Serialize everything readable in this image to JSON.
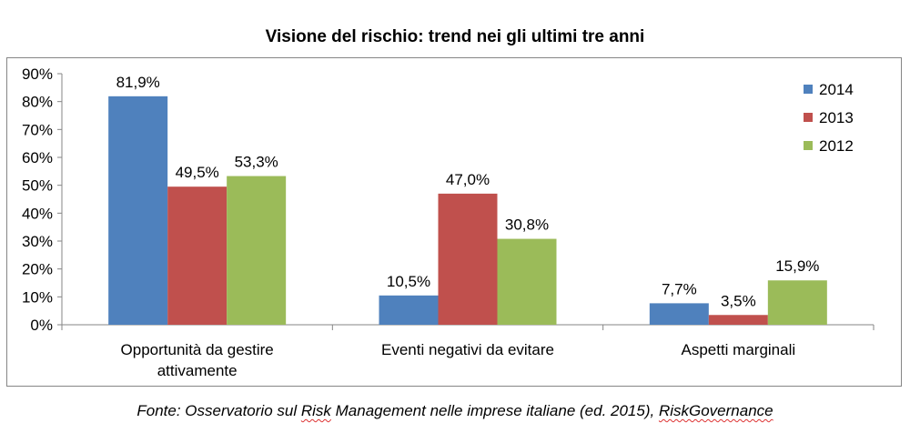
{
  "chart_data": {
    "type": "bar",
    "title": "Visione del rischio: trend nei gli ultimi tre anni",
    "categories": [
      [
        "Opportunità da gestire",
        "attivamente"
      ],
      [
        "Eventi negativi da evitare"
      ],
      [
        "Aspetti marginali"
      ]
    ],
    "series": [
      {
        "name": "2014",
        "color": "#4f81bd",
        "values": [
          81.9,
          10.5,
          7.7
        ],
        "labels": [
          "81,9%",
          "10,5%",
          "7,7%"
        ]
      },
      {
        "name": "2013",
        "color": "#c0504d",
        "values": [
          49.5,
          47.0,
          3.5
        ],
        "labels": [
          "49,5%",
          "47,0%",
          "3,5%"
        ]
      },
      {
        "name": "2012",
        "color": "#9bbb59",
        "values": [
          53.3,
          30.8,
          15.9
        ],
        "labels": [
          "53,3%",
          "30,8%",
          "15,9%"
        ]
      }
    ],
    "ylim": [
      0,
      90
    ],
    "yticks": [
      "0%",
      "10%",
      "20%",
      "30%",
      "40%",
      "50%",
      "60%",
      "70%",
      "80%",
      "90%"
    ],
    "grid": false,
    "legend_position": "top-right"
  },
  "source": {
    "prefix": "Fonte: Osservatorio sul ",
    "underlined_1": "Risk",
    "middle": " Management nelle imprese italiane (ed. 2015), ",
    "underlined_2": "RiskGovernance"
  }
}
